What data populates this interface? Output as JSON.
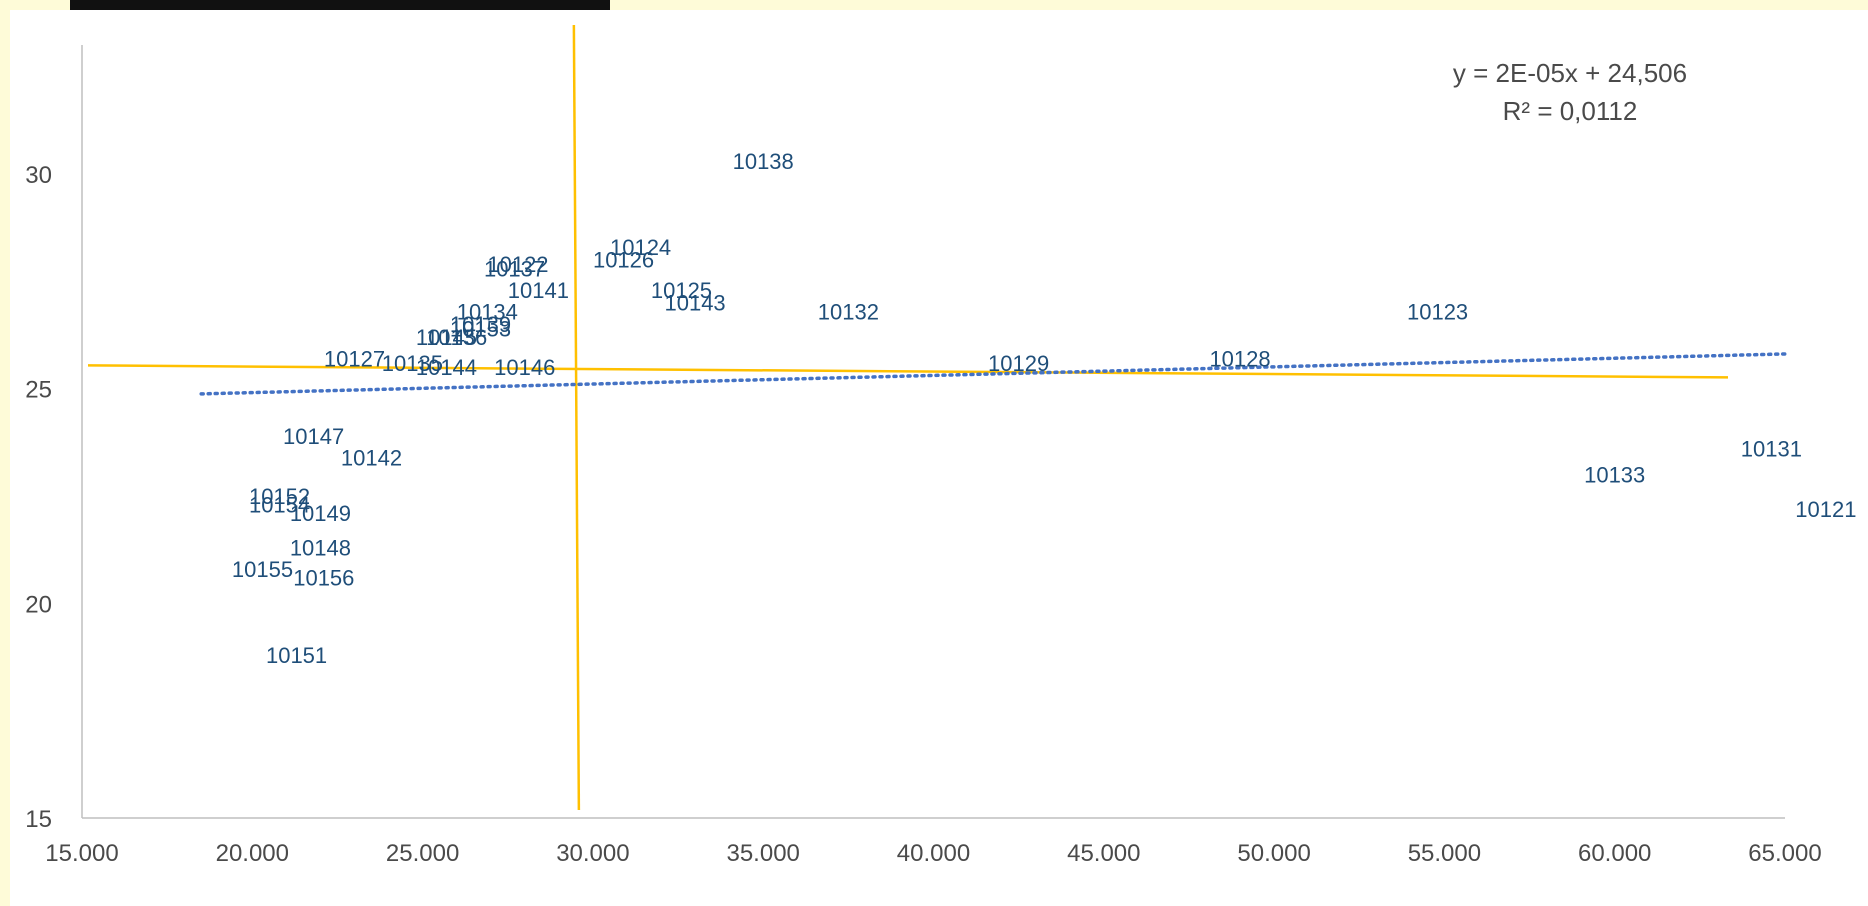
{
  "chart_data": {
    "type": "scatter",
    "title": "",
    "xlabel": "",
    "ylabel": "",
    "xlim": [
      15000,
      65000
    ],
    "ylim": [
      15,
      33
    ],
    "x_ticks": [
      "15.000",
      "20.000",
      "25.000",
      "30.000",
      "35.000",
      "40.000",
      "45.000",
      "50.000",
      "55.000",
      "60.000",
      "65.000"
    ],
    "y_ticks": [
      "15",
      "20",
      "25",
      "30"
    ],
    "points": [
      {
        "label": "10138",
        "x": 35000,
        "y": 30.3
      },
      {
        "label": "10124",
        "x": 31400,
        "y": 28.3
      },
      {
        "label": "10126",
        "x": 30900,
        "y": 28.0
      },
      {
        "label": "10122",
        "x": 27800,
        "y": 27.9
      },
      {
        "label": "10137",
        "x": 27700,
        "y": 27.8
      },
      {
        "label": "10141",
        "x": 28400,
        "y": 27.3
      },
      {
        "label": "10125",
        "x": 32600,
        "y": 27.3
      },
      {
        "label": "10143",
        "x": 33000,
        "y": 27.0
      },
      {
        "label": "10132",
        "x": 37500,
        "y": 26.8
      },
      {
        "label": "10123",
        "x": 54800,
        "y": 26.8
      },
      {
        "label": "10134",
        "x": 26900,
        "y": 26.8
      },
      {
        "label": "10139",
        "x": 26700,
        "y": 26.5
      },
      {
        "label": "10153",
        "x": 26700,
        "y": 26.4
      },
      {
        "label": "10136",
        "x": 26000,
        "y": 26.2
      },
      {
        "label": "10145",
        "x": 25700,
        "y": 26.2
      },
      {
        "label": "10127",
        "x": 23000,
        "y": 25.7
      },
      {
        "label": "10135",
        "x": 24700,
        "y": 25.6
      },
      {
        "label": "10144",
        "x": 25700,
        "y": 25.5
      },
      {
        "label": "10146",
        "x": 28000,
        "y": 25.5
      },
      {
        "label": "10129",
        "x": 42500,
        "y": 25.6
      },
      {
        "label": "10128",
        "x": 49000,
        "y": 25.7
      },
      {
        "label": "10147",
        "x": 21800,
        "y": 23.9
      },
      {
        "label": "10142",
        "x": 23500,
        "y": 23.4
      },
      {
        "label": "10131",
        "x": 64600,
        "y": 23.6
      },
      {
        "label": "10133",
        "x": 60000,
        "y": 23.0
      },
      {
        "label": "10121",
        "x": 66200,
        "y": 22.2
      },
      {
        "label": "10152",
        "x": 20800,
        "y": 22.5
      },
      {
        "label": "10154",
        "x": 20800,
        "y": 22.3
      },
      {
        "label": "10149",
        "x": 22000,
        "y": 22.1
      },
      {
        "label": "10148",
        "x": 22000,
        "y": 21.3
      },
      {
        "label": "10155",
        "x": 20300,
        "y": 20.8
      },
      {
        "label": "10156",
        "x": 22100,
        "y": 20.6
      },
      {
        "label": "10151",
        "x": 21300,
        "y": 18.8
      }
    ],
    "trendline": {
      "style": "dotted",
      "color": "#4472c4",
      "x_from": 18500,
      "x_to": 65000,
      "slope": 2e-05,
      "intercept": 24.506,
      "equation": "y = 2E-05x + 24,506",
      "r_squared": "R² = 0,0112"
    },
    "reference_lines": {
      "color": "#ffc000",
      "vertical_x": 29500,
      "horizontal_y": 25.4
    },
    "grid": false,
    "legend": "none"
  },
  "colors": {
    "background": "#fefbd8",
    "plot_area": "#ffffff",
    "label_text": "#1f4e79",
    "axis_text": "#4a4a4a",
    "axis_line": "#bfbfbf"
  }
}
